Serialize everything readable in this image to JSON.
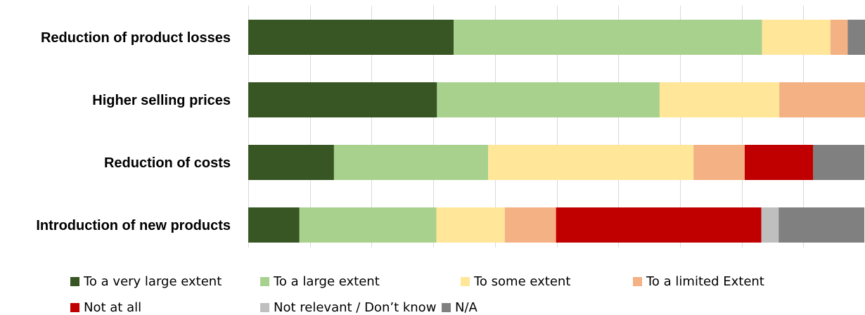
{
  "chart_data": {
    "type": "bar",
    "orientation": "horizontal",
    "stacked": true,
    "percent_stacked": true,
    "title": "",
    "xlabel": "",
    "ylabel": "",
    "xlim": [
      0,
      100
    ],
    "grid": true,
    "legend_position": "bottom",
    "categories": [
      "Reduction of product losses",
      "Higher selling prices",
      "Reduction of costs",
      "Introduction of new products"
    ],
    "series": [
      {
        "name": "To a very large extent",
        "color": "#375623",
        "values": [
          33.3,
          30.6,
          13.9,
          8.3
        ]
      },
      {
        "name": "To a large extent",
        "color": "#a9d18e",
        "values": [
          50.0,
          36.1,
          25.0,
          22.2
        ]
      },
      {
        "name": "To some extent",
        "color": "#ffe699",
        "values": [
          11.1,
          19.4,
          33.3,
          11.1
        ]
      },
      {
        "name": "To a limited Extent",
        "color": "#f4b183",
        "values": [
          2.8,
          13.9,
          8.3,
          8.3
        ]
      },
      {
        "name": "Not at all",
        "color": "#c00000",
        "values": [
          0,
          0,
          11.1,
          33.3
        ]
      },
      {
        "name": "Not relevant / Don’t know",
        "color": "#bfbfbf",
        "values": [
          0,
          0,
          0,
          2.8
        ]
      },
      {
        "name": "N/A",
        "color": "#808080",
        "values": [
          2.8,
          0,
          8.3,
          13.9
        ]
      }
    ]
  }
}
